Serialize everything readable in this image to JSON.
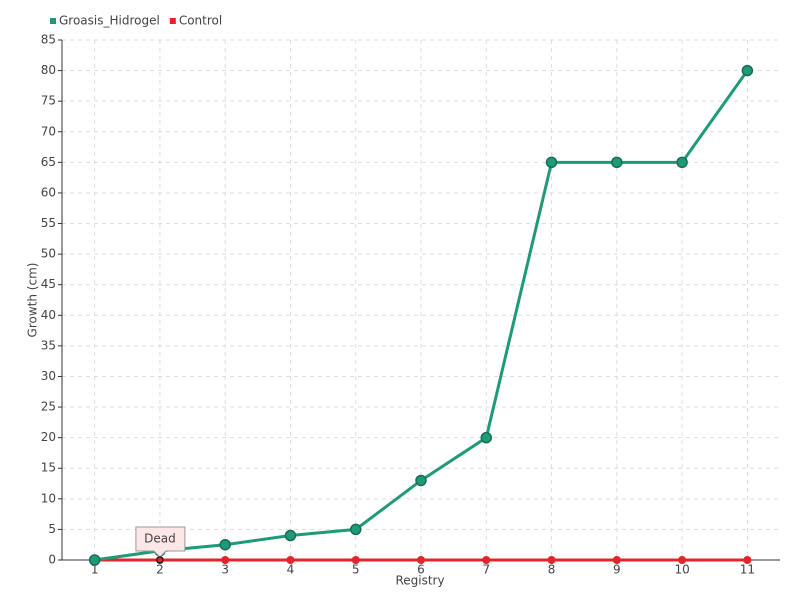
{
  "chart_data": {
    "type": "line",
    "x": [
      1,
      2,
      3,
      4,
      5,
      6,
      7,
      8,
      9,
      10,
      11
    ],
    "series": [
      {
        "name": "Groasis_Hidrogel",
        "color": "#1f9a78",
        "values": [
          0,
          1.5,
          2.5,
          4,
          5,
          13,
          20,
          65,
          65,
          65,
          80
        ]
      },
      {
        "name": "Control",
        "color": "#e3242b",
        "values": [
          0,
          0,
          0,
          0,
          0,
          0,
          0,
          0,
          0,
          0,
          0
        ]
      }
    ],
    "xlabel": "Registry",
    "ylabel": "Growth (cm)",
    "xlim": [
      0.5,
      11.5
    ],
    "xticks": [
      1,
      2,
      3,
      4,
      5,
      6,
      7,
      8,
      9,
      10,
      11
    ],
    "ylim": [
      0,
      85
    ],
    "yticks": [
      0,
      5,
      10,
      15,
      20,
      25,
      30,
      35,
      40,
      45,
      50,
      55,
      60,
      65,
      70,
      75,
      80,
      85
    ],
    "grid": true,
    "legend": "top-left",
    "annotation": {
      "text": "Dead",
      "x": 2,
      "y": 0
    }
  }
}
